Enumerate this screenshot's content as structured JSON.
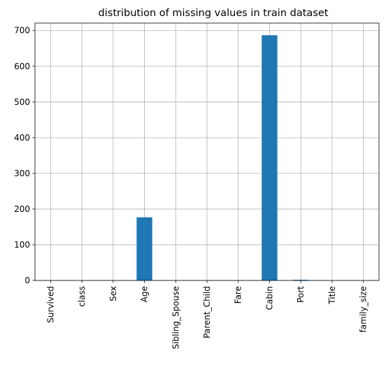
{
  "chart_data": {
    "type": "bar",
    "title": "distribution of missing values in train dataset",
    "xlabel": "",
    "ylabel": "",
    "categories": [
      "Survived",
      "class",
      "Sex",
      "Age",
      "Sibling_Spouse",
      "Parent_Child",
      "Fare",
      "Cabin",
      "Port",
      "Title",
      "family_size"
    ],
    "values": [
      0,
      0,
      0,
      177,
      0,
      0,
      0,
      687,
      2,
      0,
      0
    ],
    "ylim": [
      0,
      721
    ],
    "yticks": [
      0,
      100,
      200,
      300,
      400,
      500,
      600,
      700
    ],
    "grid": true,
    "bar_color": "#1f77b4",
    "grid_color": "#b0b0b0"
  }
}
